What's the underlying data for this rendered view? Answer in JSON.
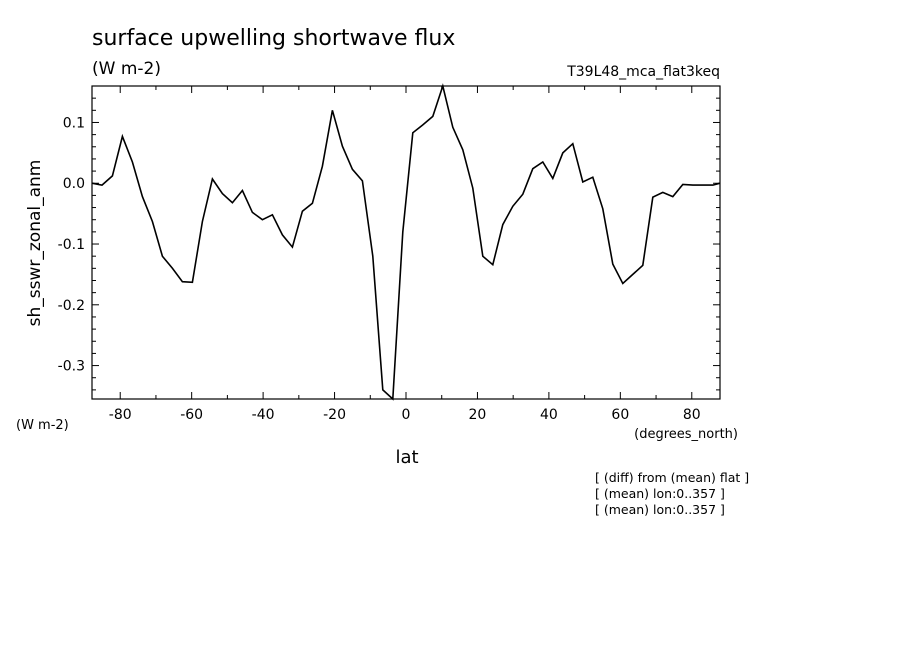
{
  "chart_data": {
    "type": "line",
    "title": "surface upwelling shortwave flux",
    "units": "(W m-2)",
    "experiment": "T39L48_mca_flat3keq",
    "ylabel": "sh_sswr_zonal_anm",
    "ylabel_units": "(W m-2)",
    "xlabel": "lat",
    "xlabel_units": "(degrees_north)",
    "xlim": [
      -87.9,
      87.9
    ],
    "ylim": [
      -0.355,
      0.16
    ],
    "x_ticks": [
      -80,
      -60,
      -40,
      -20,
      0,
      20,
      40,
      60,
      80
    ],
    "y_ticks": [
      0.1,
      0.0,
      -0.1,
      -0.2,
      -0.3
    ],
    "y_tick_labels": [
      "0.1",
      "0.0",
      "-0.1",
      "-0.2",
      "-0.3"
    ],
    "grid": false,
    "notes": [
      "[ (diff) from (mean) flat ]",
      "[ (mean) lon:0..357 ]",
      "[ (mean) lon:0..357 ]"
    ],
    "series": [
      {
        "x": [
          -87.9,
          -85.1,
          -82.2,
          -79.4,
          -76.6,
          -73.8,
          -71.0,
          -68.2,
          -65.4,
          -62.6,
          -59.8,
          -57.0,
          -54.2,
          -51.4,
          -48.6,
          -45.8,
          -43.0,
          -40.2,
          -37.4,
          -34.6,
          -31.8,
          -29.0,
          -26.2,
          -23.4,
          -20.6,
          -17.8,
          -15.0,
          -12.2,
          -9.3,
          -6.5,
          -3.7,
          -0.9,
          1.9,
          4.7,
          7.5,
          10.3,
          13.1,
          15.9,
          18.7,
          21.5,
          24.3,
          27.1,
          29.9,
          32.7,
          35.5,
          38.3,
          41.1,
          43.9,
          46.7,
          49.5,
          52.3,
          55.1,
          57.9,
          60.7,
          63.5,
          66.3,
          69.1,
          71.9,
          74.7,
          77.5,
          80.3,
          83.1,
          85.9,
          87.9
        ],
        "values": [
          0.0,
          -0.003,
          0.012,
          0.077,
          0.035,
          -0.022,
          -0.063,
          -0.12,
          -0.14,
          -0.162,
          -0.163,
          -0.063,
          0.007,
          -0.017,
          -0.032,
          -0.012,
          -0.048,
          -0.06,
          -0.052,
          -0.085,
          -0.105,
          -0.046,
          -0.033,
          0.028,
          0.12,
          0.061,
          0.023,
          0.004,
          -0.12,
          -0.34,
          -0.355,
          -0.08,
          0.083,
          0.096,
          0.11,
          0.16,
          0.092,
          0.055,
          -0.008,
          -0.12,
          -0.134,
          -0.068,
          -0.038,
          -0.018,
          0.024,
          0.035,
          0.008,
          0.05,
          0.065,
          0.002,
          0.01,
          -0.042,
          -0.133,
          -0.165,
          -0.15,
          -0.135,
          -0.023,
          -0.015,
          -0.022,
          -0.002,
          -0.003,
          -0.003,
          -0.003,
          0.0
        ]
      }
    ]
  }
}
